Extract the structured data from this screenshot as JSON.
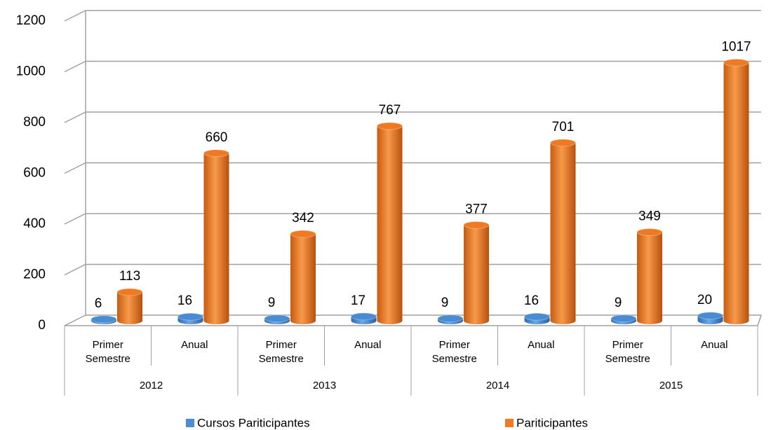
{
  "chart_data": {
    "type": "bar",
    "categories": [
      "Primer Semestre",
      "Anual",
      "Primer Semestre",
      "Anual",
      "Primer Semestre",
      "Anual",
      "Primer Semestre",
      "Anual"
    ],
    "groups": [
      "2012",
      "2013",
      "2014",
      "2015"
    ],
    "series": [
      {
        "name": "Cursos Pariticipantes",
        "color": "#4a8cd4",
        "values": [
          6,
          16,
          9,
          17,
          9,
          16,
          9,
          20
        ]
      },
      {
        "name": "Pariticipantes",
        "color": "#f07a22",
        "values": [
          113,
          660,
          342,
          767,
          377,
          701,
          349,
          1017
        ]
      }
    ],
    "ylim": [
      0,
      1200
    ],
    "yticks": [
      0,
      200,
      400,
      600,
      800,
      1000,
      1200
    ],
    "grid": true
  }
}
